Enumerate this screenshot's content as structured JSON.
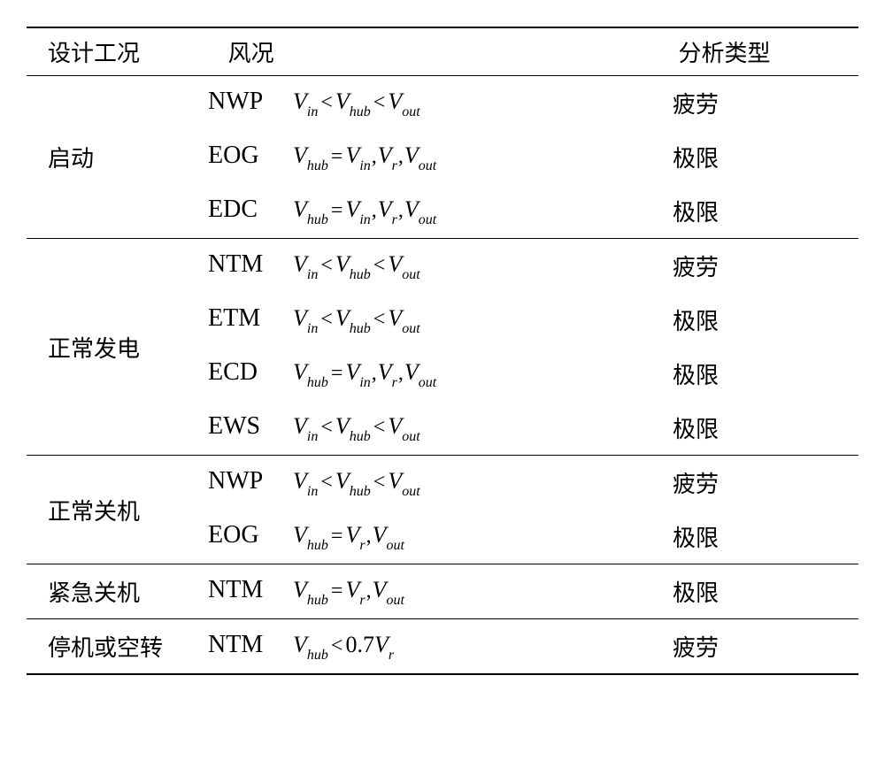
{
  "header": {
    "col1": "设计工况",
    "col2": "风况",
    "col3": "分析类型"
  },
  "sections": [
    {
      "label": "启动",
      "rows": [
        {
          "code": "NWP",
          "formula_key": "range",
          "analysis": "疲劳"
        },
        {
          "code": "EOG",
          "formula_key": "eq3",
          "analysis": "极限"
        },
        {
          "code": "EDC",
          "formula_key": "eq3",
          "analysis": "极限"
        }
      ]
    },
    {
      "label": "正常发电",
      "rows": [
        {
          "code": "NTM",
          "formula_key": "range",
          "analysis": "疲劳"
        },
        {
          "code": "ETM",
          "formula_key": "range",
          "analysis": "极限"
        },
        {
          "code": "ECD",
          "formula_key": "eq3",
          "analysis": "极限"
        },
        {
          "code": "EWS",
          "formula_key": "range",
          "analysis": "极限"
        }
      ]
    },
    {
      "label": "正常关机",
      "rows": [
        {
          "code": "NWP",
          "formula_key": "range",
          "analysis": "疲劳"
        },
        {
          "code": "EOG",
          "formula_key": "eq2",
          "analysis": "极限"
        }
      ]
    },
    {
      "label": "紧急关机",
      "rows": [
        {
          "code": "NTM",
          "formula_key": "eq2",
          "analysis": "极限"
        }
      ]
    },
    {
      "label": "停机或空转",
      "rows": [
        {
          "code": "NTM",
          "formula_key": "lt07",
          "analysis": "疲劳"
        }
      ]
    }
  ],
  "symbols": {
    "V": "V",
    "in": "in",
    "hub": "hub",
    "out": "out",
    "r": "r",
    "lt": "<",
    "eq": "=",
    "comma": ",",
    "factor": "0.7"
  },
  "style": {
    "font_main": "SimSun, Times New Roman, serif",
    "font_math": "Times New Roman, serif",
    "font_size_body": 26,
    "font_size_code": 28,
    "font_size_sub": 16,
    "border_top_width": 2,
    "border_section_width": 1,
    "col1_width": 210,
    "col2_width": 525,
    "col3_width": 210,
    "background": "#ffffff",
    "text_color": "#000000"
  }
}
